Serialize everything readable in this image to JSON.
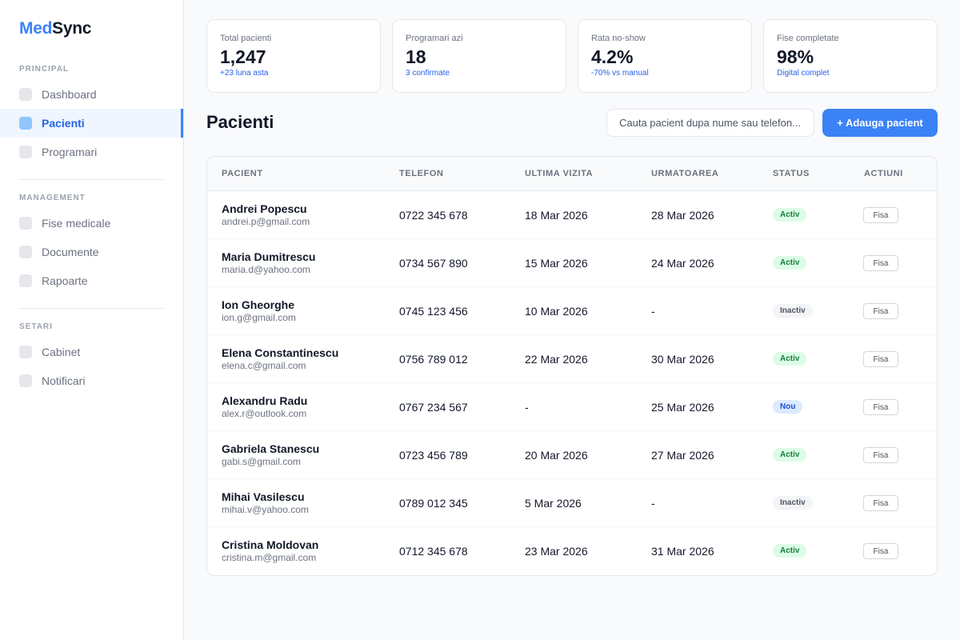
{
  "app": {
    "logo_accent": "Med",
    "logo_rest": "Sync",
    "accent_color": "#3b82f6"
  },
  "sidebar": {
    "sections": [
      {
        "title": "PRINCIPAL",
        "items": [
          {
            "label": "Dashboard",
            "icon": "dashboard-icon",
            "active": false
          },
          {
            "label": "Pacienti",
            "icon": "patients-icon",
            "active": true
          },
          {
            "label": "Programari",
            "icon": "calendar-icon",
            "active": false
          }
        ]
      },
      {
        "title": "MANAGEMENT",
        "items": [
          {
            "label": "Fise medicale",
            "icon": "medical-file-icon",
            "active": false
          },
          {
            "label": "Documente",
            "icon": "documents-icon",
            "active": false
          },
          {
            "label": "Rapoarte",
            "icon": "reports-icon",
            "active": false
          }
        ]
      },
      {
        "title": "SETARI",
        "items": [
          {
            "label": "Cabinet",
            "icon": "clinic-icon",
            "active": false
          },
          {
            "label": "Notificari",
            "icon": "bell-icon",
            "active": false
          }
        ]
      }
    ]
  },
  "stats": [
    {
      "label": "Total pacienti",
      "value": "1,247",
      "sub": "+23 luna asta"
    },
    {
      "label": "Programari azi",
      "value": "18",
      "sub": "3 confirmate"
    },
    {
      "label": "Rata no-show",
      "value": "4.2%",
      "sub": "-70% vs manual"
    },
    {
      "label": "Fise completate",
      "value": "98%",
      "sub": "Digital complet"
    }
  ],
  "page": {
    "title": "Pacienti",
    "search_placeholder": "Cauta pacient dupa nume sau telefon...",
    "add_button": "+ Adauga pacient"
  },
  "table": {
    "headers": [
      "PACIENT",
      "TELEFON",
      "ULTIMA VIZITA",
      "URMATOAREA",
      "STATUS",
      "ACTIUNI"
    ],
    "action_label": "Fisa",
    "rows": [
      {
        "name": "Andrei Popescu",
        "email": "andrei.p@gmail.com",
        "phone": "0722 345 678",
        "last": "18 Mar 2026",
        "next": "28 Mar 2026",
        "status": "Activ",
        "status_type": "activ"
      },
      {
        "name": "Maria Dumitrescu",
        "email": "maria.d@yahoo.com",
        "phone": "0734 567 890",
        "last": "15 Mar 2026",
        "next": "24 Mar 2026",
        "status": "Activ",
        "status_type": "activ"
      },
      {
        "name": "Ion Gheorghe",
        "email": "ion.g@gmail.com",
        "phone": "0745 123 456",
        "last": "10 Mar 2026",
        "next": "-",
        "status": "Inactiv",
        "status_type": "inactiv"
      },
      {
        "name": "Elena Constantinescu",
        "email": "elena.c@gmail.com",
        "phone": "0756 789 012",
        "last": "22 Mar 2026",
        "next": "30 Mar 2026",
        "status": "Activ",
        "status_type": "activ"
      },
      {
        "name": "Alexandru Radu",
        "email": "alex.r@outlook.com",
        "phone": "0767 234 567",
        "last": "-",
        "next": "25 Mar 2026",
        "status": "Nou",
        "status_type": "nou"
      },
      {
        "name": "Gabriela Stanescu",
        "email": "gabi.s@gmail.com",
        "phone": "0723 456 789",
        "last": "20 Mar 2026",
        "next": "27 Mar 2026",
        "status": "Activ",
        "status_type": "activ"
      },
      {
        "name": "Mihai Vasilescu",
        "email": "mihai.v@yahoo.com",
        "phone": "0789 012 345",
        "last": "5 Mar 2026",
        "next": "-",
        "status": "Inactiv",
        "status_type": "inactiv"
      },
      {
        "name": "Cristina Moldovan",
        "email": "cristina.m@gmail.com",
        "phone": "0712 345 678",
        "last": "23 Mar 2026",
        "next": "31 Mar 2026",
        "status": "Activ",
        "status_type": "activ"
      }
    ]
  }
}
